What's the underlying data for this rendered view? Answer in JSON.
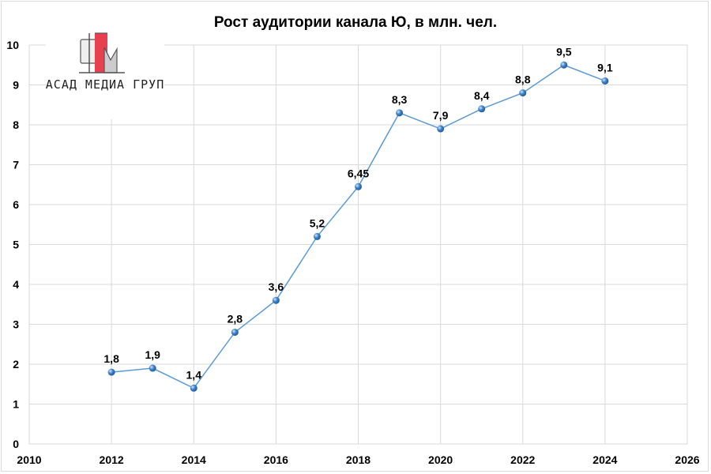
{
  "chart_data": {
    "type": "line",
    "title": "Рост аудитории канала Ю, в млн. чел.",
    "x": [
      2012,
      2013,
      2014,
      2015,
      2016,
      2017,
      2018,
      2019,
      2020,
      2021,
      2022,
      2023,
      2024
    ],
    "values": [
      1.8,
      1.9,
      1.4,
      2.8,
      3.6,
      5.2,
      6.45,
      8.3,
      7.9,
      8.4,
      8.8,
      9.5,
      9.1
    ],
    "data_labels": [
      "1,8",
      "1,9",
      "1,4",
      "2,8",
      "3,6",
      "5,2",
      "6,45",
      "8,3",
      "7,9",
      "8,4",
      "8,8",
      "9,5",
      "9,1"
    ],
    "xlim": [
      2010,
      2026
    ],
    "ylim": [
      0,
      10
    ],
    "xticks": [
      2010,
      2012,
      2014,
      2016,
      2018,
      2020,
      2022,
      2024,
      2026
    ],
    "yticks": [
      0,
      1,
      2,
      3,
      4,
      5,
      6,
      7,
      8,
      9,
      10
    ],
    "grid": true,
    "line_color": "#5b9bd5",
    "marker_color": "#3a7fc8"
  },
  "logo": {
    "text": "ФАСАД МЕДИА ГРУПП",
    "accent": "#e8404f"
  }
}
